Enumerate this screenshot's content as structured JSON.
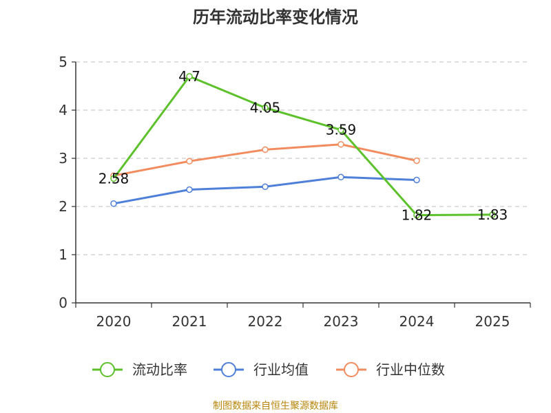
{
  "chart_data": {
    "type": "line",
    "title": "历年流动比率变化情况",
    "categories": [
      "2020",
      "2021",
      "2022",
      "2023",
      "2024",
      "2025"
    ],
    "ylim": [
      0,
      5
    ],
    "yticks": [
      "0",
      "1",
      "2",
      "3",
      "4",
      "5"
    ],
    "grid": "horizontal dashed",
    "legend_position": "bottom",
    "series": [
      {
        "name": "流动比率",
        "color": "#5cc12a",
        "values": [
          2.58,
          4.7,
          4.05,
          3.59,
          1.82,
          1.83
        ],
        "labels": [
          "2.58",
          "4.7",
          "4.05",
          "3.59",
          "1.82",
          "1.83"
        ]
      },
      {
        "name": "行业均值",
        "color": "#4e7fd9",
        "values": [
          2.06,
          2.35,
          2.41,
          2.61,
          2.55,
          null
        ]
      },
      {
        "name": "行业中位数",
        "color": "#f28c5e",
        "values": [
          2.64,
          2.94,
          3.18,
          3.29,
          2.95,
          null
        ]
      }
    ]
  },
  "source": "制图数据来自恒生聚源数据库"
}
